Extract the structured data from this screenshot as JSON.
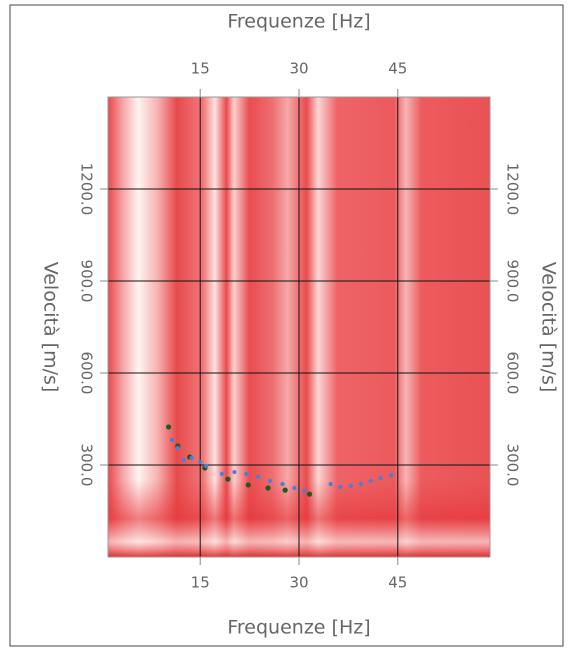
{
  "chart_data": {
    "type": "scatter",
    "xlabel": "Frequenze [Hz]",
    "ylabel": "Velocità [m/s]",
    "xlim": [
      1,
      59
    ],
    "xticks": [
      15,
      30,
      45
    ],
    "ylim": [
      0,
      1500
    ],
    "yticks": [
      {
        "value": 300,
        "label": "300.0"
      },
      {
        "value": 600,
        "label": "600.0"
      },
      {
        "value": 900,
        "label": "900.0"
      },
      {
        "value": 1200,
        "label": "1200.0"
      }
    ],
    "grid": true,
    "series": [
      {
        "color": "#1e5a1e",
        "x": [
          10.2,
          11.6,
          13.4,
          15.7,
          19.2,
          22.3,
          25.3,
          27.9,
          31.6
        ],
        "values": [
          424,
          362,
          326,
          290,
          254,
          235,
          225,
          218,
          205
        ]
      },
      {
        "color": "#4a7fd6",
        "x": [
          10.7,
          11.6,
          12.5,
          13.7,
          15.0,
          15.9,
          18.3,
          20.2,
          22.0,
          23.8,
          25.6,
          27.5,
          29.3,
          30.8
        ],
        "values": [
          382,
          355,
          316,
          323,
          310,
          297,
          271,
          277,
          271,
          261,
          248,
          238,
          225,
          215
        ]
      },
      {
        "color": "#4a7fd6",
        "x": [
          34.8,
          36.3,
          37.9,
          39.4,
          40.9,
          42.4,
          44.0
        ],
        "values": [
          238,
          228,
          232,
          238,
          248,
          258,
          267
        ]
      }
    ]
  }
}
